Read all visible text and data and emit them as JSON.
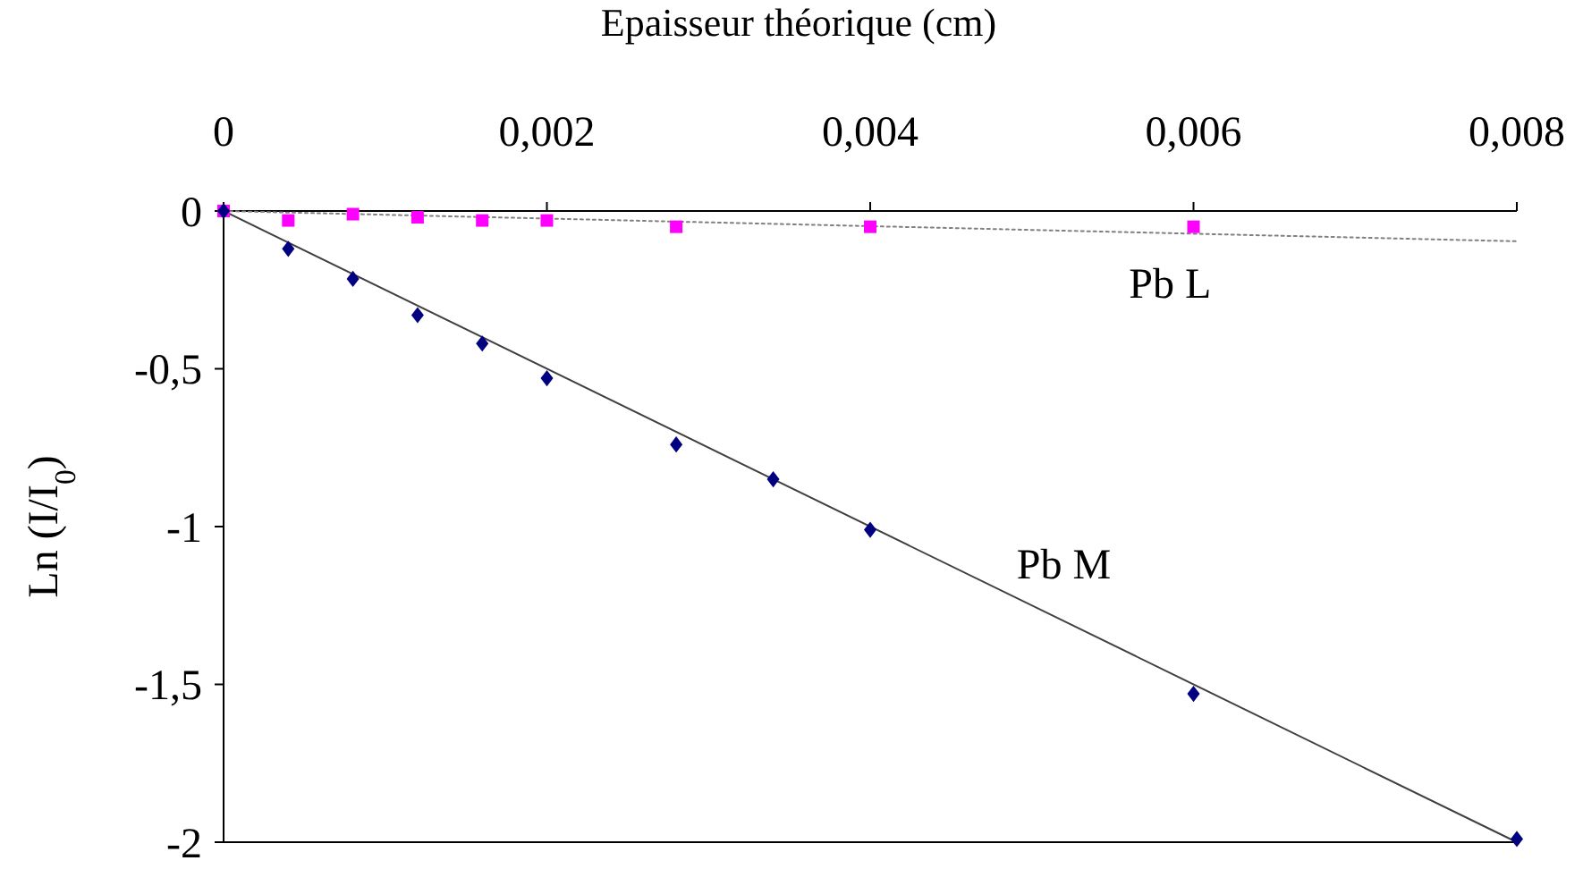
{
  "chart_data": {
    "type": "scatter",
    "xlabel": "Epaisseur théorique (cm)",
    "ylabel": "Ln (I/I$_{0}$)",
    "xlim": [
      0,
      0.008
    ],
    "xticks": [
      0,
      {
        "value": 0.002,
        "label": "0,002"
      },
      {
        "value": 0.004,
        "label": "0,004"
      },
      {
        "value": 0.006,
        "label": "0,006"
      },
      {
        "value": 0.008,
        "label": "0,008"
      }
    ],
    "ylim": [
      -2,
      0
    ],
    "yticks": [
      {
        "value": -2,
        "label": "-2"
      },
      {
        "value": -1.5,
        "label": "-1,5"
      },
      {
        "value": -1,
        "label": "-1"
      },
      {
        "value": -0.5,
        "label": "-0,5"
      },
      0
    ],
    "series": [
      {
        "color": "#ff00ff",
        "marker": "square",
        "x": [
          0,
          0.0004,
          0.0008,
          0.0012,
          0.0016,
          0.002,
          0.0028,
          0.004,
          0.006
        ],
        "values": [
          0,
          -0.03,
          -0.01,
          -0.02,
          -0.03,
          -0.03,
          -0.05,
          -0.05,
          -0.05
        ]
      },
      {
        "color": "#000080",
        "marker": "diamond",
        "x": [
          0,
          0.0004,
          0.0008,
          0.0012,
          0.0016,
          0.002,
          0.0028,
          0.0034,
          0.004,
          0.006,
          0.008
        ],
        "values": [
          0,
          -0.12,
          -0.215,
          -0.33,
          -0.42,
          -0.53,
          -0.74,
          -0.85,
          -1.01,
          -1.53,
          -1.99
        ]
      },
      {
        "type": "line",
        "name": "Pb L",
        "color": "#808080",
        "line_style": "dotted",
        "x": [
          0,
          0.008
        ],
        "values": [
          0,
          -0.096
        ]
      },
      {
        "type": "line",
        "name": "Pb M",
        "color": "#404040",
        "line_style": "solid",
        "x": [
          0,
          0.008
        ],
        "values": [
          0,
          -2
        ]
      }
    ]
  }
}
